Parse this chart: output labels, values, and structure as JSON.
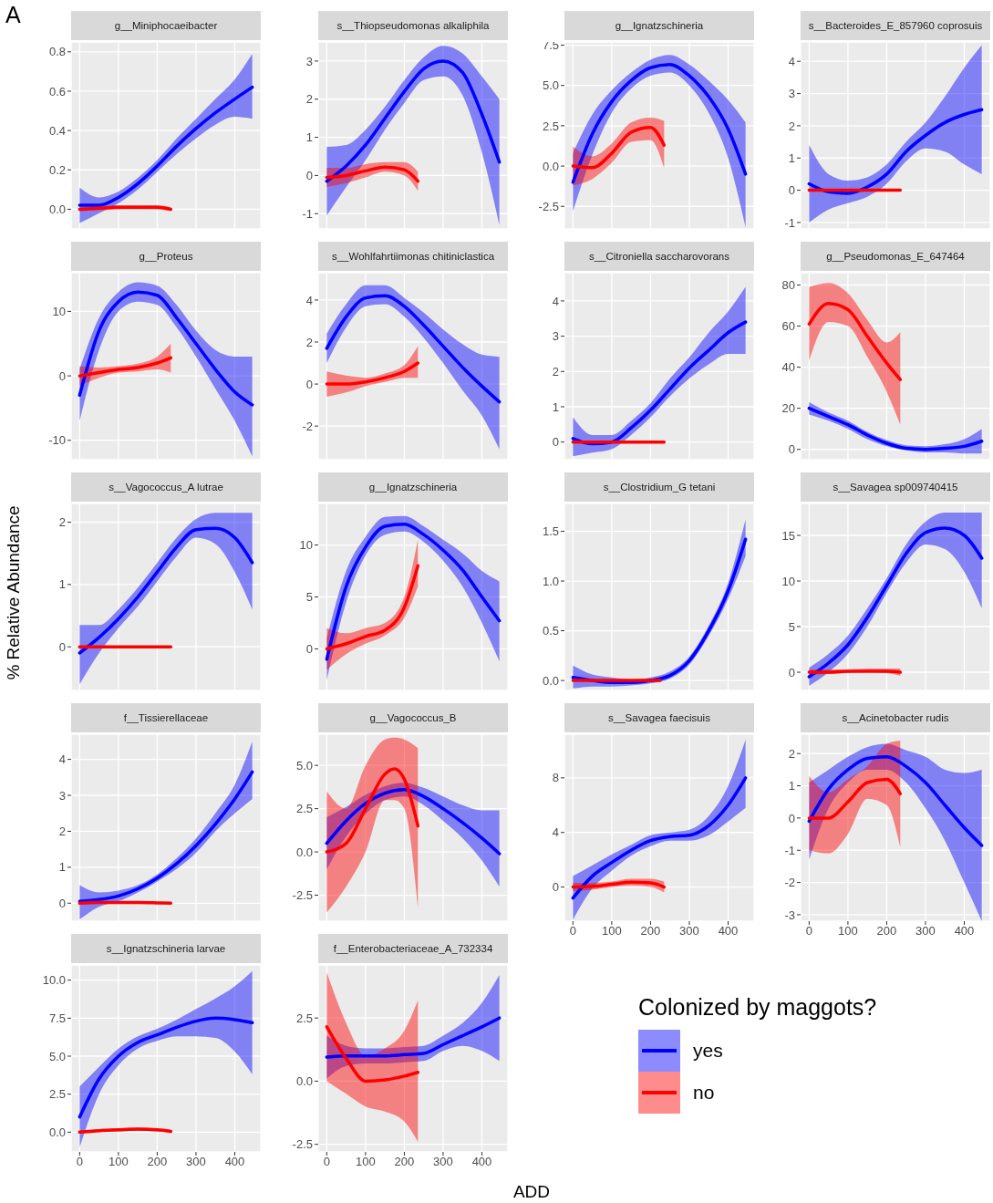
{
  "chart_data": [
    {
      "type": "line",
      "title": "g__Miniphocaeibacter",
      "annotations": [
        "A"
      ],
      "grid": true,
      "tick_labels": "y",
      "xlim": [
        -22,
        467
      ],
      "xticks": [
        0,
        100,
        200,
        300,
        400
      ],
      "ylim": [
        -0.1,
        0.85
      ],
      "yticks": [
        {
          "value": 0,
          "label": "0.0"
        },
        0.2,
        0.4,
        0.6,
        0.8
      ],
      "series": [
        {
          "color": "#0000ff",
          "x": [
            0,
            50,
            100,
            150,
            200,
            250,
            300,
            350,
            400,
            445
          ],
          "values": [
            0.02,
            0.02,
            0.06,
            0.13,
            0.22,
            0.32,
            0.41,
            0.49,
            0.56,
            0.62
          ],
          "lower": [
            -0.07,
            -0.02,
            0.03,
            0.1,
            0.19,
            0.28,
            0.36,
            0.43,
            0.47,
            0.46
          ],
          "upper": [
            0.11,
            0.06,
            0.09,
            0.16,
            0.25,
            0.36,
            0.46,
            0.56,
            0.66,
            0.79
          ]
        },
        {
          "color": "#ff0000",
          "x": [
            0,
            50,
            100,
            150,
            200,
            235
          ],
          "values": [
            0,
            0.005,
            0.01,
            0.01,
            0.01,
            0
          ],
          "lower": [
            -0.01,
            -0.005,
            0,
            0,
            0,
            -0.01
          ],
          "upper": [
            0.01,
            0.015,
            0.02,
            0.02,
            0.02,
            0.01
          ]
        }
      ]
    },
    {
      "type": "line",
      "title": "s__Thiopseudomonas alkaliphila",
      "grid": true,
      "tick_labels": "y",
      "xlim": [
        -22,
        467
      ],
      "xticks": [
        0,
        100,
        200,
        300,
        400
      ],
      "ylim": [
        -1.4,
        3.5
      ],
      "yticks": [
        -1,
        0,
        1,
        2,
        3
      ],
      "series": [
        {
          "color": "#0000ff",
          "x": [
            0,
            50,
            100,
            150,
            200,
            250,
            300,
            350,
            400,
            445
          ],
          "values": [
            -0.15,
            0.25,
            0.8,
            1.5,
            2.2,
            2.8,
            3,
            2.7,
            1.6,
            0.35
          ],
          "lower": [
            -1.05,
            -0.3,
            0.4,
            1.2,
            1.9,
            2.5,
            2.6,
            2.1,
            0.6,
            -1.3
          ],
          "upper": [
            0.75,
            0.8,
            1.2,
            1.8,
            2.5,
            3.1,
            3.4,
            3.2,
            2.6,
            2
          ]
        },
        {
          "color": "#ff0000",
          "x": [
            0,
            50,
            100,
            150,
            200,
            235
          ],
          "values": [
            -0.05,
            0,
            0.12,
            0.22,
            0.15,
            -0.15
          ],
          "lower": [
            -0.3,
            -0.2,
            -0.05,
            0.1,
            0,
            -0.4
          ],
          "upper": [
            0.2,
            0.2,
            0.3,
            0.35,
            0.35,
            0.1
          ]
        }
      ]
    },
    {
      "type": "line",
      "title": "g__Ignatzschineria",
      "grid": true,
      "tick_labels": "y",
      "xlim": [
        -22,
        467
      ],
      "xticks": [
        0,
        100,
        200,
        300,
        400
      ],
      "ylim": [
        -3.9,
        7.7
      ],
      "yticks": [
        -2.5,
        {
          "value": 0,
          "label": "0.0"
        },
        2.5,
        {
          "value": 5,
          "label": "5.0"
        },
        7.5
      ],
      "series": [
        {
          "color": "#0000ff",
          "x": [
            0,
            50,
            100,
            150,
            200,
            250,
            300,
            350,
            400,
            445
          ],
          "values": [
            -1,
            2,
            4,
            5.3,
            6.1,
            6.3,
            5.6,
            4.3,
            2.3,
            -0.5
          ],
          "lower": [
            -2.8,
            0.7,
            3.3,
            4.8,
            5.6,
            5.8,
            5,
            3.3,
            0.5,
            -3.8
          ],
          "upper": [
            0.8,
            3.2,
            4.7,
            5.8,
            6.6,
            6.9,
            6.3,
            5.3,
            4.1,
            2.7
          ]
        },
        {
          "color": "#ff0000",
          "x": [
            0,
            50,
            100,
            150,
            200,
            235
          ],
          "values": [
            0,
            -0.1,
            0.8,
            2.1,
            2.4,
            1.3
          ],
          "lower": [
            -1.2,
            -0.8,
            0.2,
            1.5,
            1.6,
            -0.1
          ],
          "upper": [
            1.2,
            0.6,
            1.4,
            2.7,
            3,
            2.8
          ]
        }
      ]
    },
    {
      "type": "line",
      "title": "s__Bacteroides_E_857960 coprosuis",
      "grid": true,
      "tick_labels": "y",
      "xlim": [
        -22,
        467
      ],
      "xticks": [
        0,
        100,
        200,
        300,
        400
      ],
      "ylim": [
        -1.2,
        4.6
      ],
      "yticks": [
        -1,
        0,
        1,
        2,
        3,
        4
      ],
      "series": [
        {
          "color": "#0000ff",
          "x": [
            0,
            50,
            100,
            150,
            200,
            250,
            300,
            350,
            400,
            445
          ],
          "values": [
            0.2,
            -0.05,
            -0.1,
            0.1,
            0.5,
            1.2,
            1.7,
            2.1,
            2.35,
            2.5
          ],
          "lower": [
            -1,
            -0.6,
            -0.4,
            -0.2,
            0.2,
            0.9,
            1.3,
            1.2,
            0.8,
            0.5
          ],
          "upper": [
            1.4,
            0.5,
            0.3,
            0.4,
            0.8,
            1.5,
            2.1,
            2.9,
            3.8,
            4.5
          ]
        },
        {
          "color": "#ff0000",
          "x": [
            0,
            50,
            100,
            150,
            200,
            235
          ],
          "values": [
            0,
            0,
            0,
            0,
            0,
            0
          ]
        }
      ]
    },
    {
      "type": "line",
      "title": "g__Proteus",
      "grid": true,
      "tick_labels": "y",
      "xlim": [
        -22,
        467
      ],
      "xticks": [
        0,
        100,
        200,
        300,
        400
      ],
      "ylim": [
        -13,
        16
      ],
      "yticks": [
        -10,
        0,
        10
      ],
      "series": [
        {
          "color": "#0000ff",
          "x": [
            0,
            50,
            100,
            150,
            200,
            250,
            300,
            350,
            400,
            445
          ],
          "values": [
            -3,
            7,
            11.5,
            13,
            12.5,
            9,
            5,
            1,
            -2.5,
            -4.5
          ],
          "lower": [
            -7,
            4,
            10,
            11.5,
            11,
            7.5,
            3,
            -2,
            -7,
            -12.5
          ],
          "upper": [
            1,
            9,
            13,
            14.5,
            14,
            11,
            7,
            4,
            3,
            3
          ]
        },
        {
          "color": "#ff0000",
          "x": [
            0,
            50,
            100,
            150,
            200,
            235
          ],
          "values": [
            0,
            0.5,
            1,
            1.3,
            2,
            2.8
          ],
          "lower": [
            -1.5,
            -0.3,
            0.5,
            0.7,
            1,
            0.5
          ],
          "upper": [
            1.5,
            1.3,
            1.5,
            1.9,
            3,
            5
          ]
        }
      ]
    },
    {
      "type": "line",
      "title": "s__Wohlfahrtiimonas chitiniclastica",
      "grid": true,
      "tick_labels": "y",
      "xlim": [
        -22,
        467
      ],
      "xticks": [
        0,
        100,
        200,
        300,
        400
      ],
      "ylim": [
        -3.6,
        5.3
      ],
      "yticks": [
        -2,
        0,
        2,
        4
      ],
      "series": [
        {
          "color": "#0000ff",
          "x": [
            0,
            50,
            100,
            150,
            200,
            250,
            300,
            350,
            400,
            445
          ],
          "values": [
            1.7,
            3.2,
            4.1,
            4.2,
            3.7,
            2.8,
            1.8,
            0.8,
            -0.1,
            -0.85
          ],
          "lower": [
            1,
            2.7,
            3.7,
            3.8,
            3.2,
            2.2,
            1,
            -0.3,
            -1.5,
            -3.1
          ],
          "upper": [
            2.4,
            3.8,
            4.7,
            4.7,
            4.1,
            3.4,
            2.6,
            1.9,
            1.4,
            1.3
          ]
        },
        {
          "color": "#ff0000",
          "x": [
            0,
            50,
            100,
            150,
            200,
            235
          ],
          "values": [
            0,
            0,
            0.1,
            0.3,
            0.6,
            1
          ],
          "lower": [
            -0.6,
            -0.4,
            -0.1,
            0.1,
            0.3,
            0.3
          ],
          "upper": [
            0.6,
            0.4,
            0.3,
            0.5,
            0.9,
            1.8
          ]
        }
      ]
    },
    {
      "type": "line",
      "title": "s__Citroniella saccharovorans",
      "grid": true,
      "tick_labels": "y",
      "xlim": [
        -22,
        467
      ],
      "xticks": [
        0,
        100,
        200,
        300,
        400
      ],
      "ylim": [
        -0.5,
        4.8
      ],
      "yticks": [
        0,
        1,
        2,
        3,
        4
      ],
      "series": [
        {
          "color": "#0000ff",
          "x": [
            0,
            50,
            100,
            150,
            200,
            250,
            300,
            350,
            400,
            445
          ],
          "values": [
            0.1,
            -0.05,
            0,
            0.4,
            0.9,
            1.5,
            2.1,
            2.6,
            3.1,
            3.4
          ],
          "lower": [
            -0.4,
            -0.3,
            -0.2,
            0.2,
            0.7,
            1.3,
            1.8,
            2.2,
            2.5,
            2.5
          ],
          "upper": [
            0.7,
            0.2,
            0.2,
            0.6,
            1.1,
            1.8,
            2.4,
            3.1,
            3.7,
            4.4
          ]
        },
        {
          "color": "#ff0000",
          "x": [
            0,
            50,
            100,
            150,
            200,
            235
          ],
          "values": [
            0,
            0,
            0,
            0,
            0,
            0
          ]
        }
      ]
    },
    {
      "type": "line",
      "title": "g__Pseudomonas_E_647464",
      "grid": true,
      "tick_labels": "y",
      "xlim": [
        -22,
        467
      ],
      "xticks": [
        0,
        100,
        200,
        300,
        400
      ],
      "ylim": [
        -5,
        86
      ],
      "yticks": [
        0,
        20,
        40,
        60,
        80
      ],
      "series": [
        {
          "color": "#0000ff",
          "x": [
            0,
            50,
            100,
            150,
            200,
            250,
            300,
            350,
            400,
            445
          ],
          "values": [
            20,
            16,
            12,
            7,
            3,
            0.5,
            0,
            0.5,
            1.5,
            4
          ],
          "lower": [
            17,
            14,
            10,
            5,
            1.5,
            -0.5,
            -1.5,
            -1.5,
            -2,
            -2
          ],
          "upper": [
            23,
            18,
            14,
            8.5,
            4.5,
            2,
            1.5,
            2.5,
            5,
            10
          ]
        },
        {
          "color": "#ff0000",
          "x": [
            0,
            50,
            100,
            150,
            200,
            235
          ],
          "values": [
            61,
            71,
            68,
            55,
            42,
            34
          ],
          "lower": [
            43,
            62,
            60,
            45,
            28,
            12
          ],
          "upper": [
            79,
            81,
            76,
            63,
            52,
            57
          ]
        }
      ]
    },
    {
      "type": "line",
      "title": "s__Vagococcus_A lutrae",
      "ylabel": "% Relative Abundance",
      "grid": true,
      "tick_labels": "y",
      "xlim": [
        -22,
        467
      ],
      "xticks": [
        0,
        100,
        200,
        300,
        400
      ],
      "ylim": [
        -0.7,
        2.3
      ],
      "yticks": [
        0,
        1,
        2
      ],
      "series": [
        {
          "color": "#0000ff",
          "x": [
            0,
            50,
            100,
            150,
            200,
            250,
            300,
            350,
            400,
            445
          ],
          "values": [
            -0.1,
            0.15,
            0.45,
            0.8,
            1.2,
            1.6,
            1.88,
            1.9,
            1.75,
            1.35
          ],
          "lower": [
            -0.6,
            -0.1,
            0.3,
            0.65,
            1.05,
            1.45,
            1.75,
            1.65,
            1.2,
            0.6
          ],
          "upper": [
            0.35,
            0.35,
            0.6,
            0.95,
            1.35,
            1.75,
            2.05,
            2.15,
            2.15,
            2.15
          ]
        },
        {
          "color": "#ff0000",
          "x": [
            0,
            50,
            100,
            150,
            200,
            235
          ],
          "values": [
            0,
            0,
            0,
            0,
            0,
            0
          ]
        }
      ]
    },
    {
      "type": "line",
      "title": "g__Ignatzschineria",
      "grid": true,
      "tick_labels": "y",
      "xlim": [
        -22,
        467
      ],
      "xticks": [
        0,
        100,
        200,
        300,
        400
      ],
      "ylim": [
        -4,
        14
      ],
      "yticks": [
        0,
        5,
        10
      ],
      "series": [
        {
          "color": "#0000ff",
          "x": [
            0,
            50,
            100,
            150,
            200,
            250,
            300,
            350,
            400,
            445
          ],
          "values": [
            -1,
            6,
            9.8,
            11.8,
            12,
            11,
            9.5,
            7.6,
            5,
            2.7
          ],
          "lower": [
            -3,
            4.5,
            9,
            11,
            11.3,
            10.3,
            8.5,
            6,
            2.5,
            -1.2
          ],
          "upper": [
            1,
            7.5,
            10.8,
            12.7,
            12.8,
            11.8,
            10.5,
            9.2,
            7.5,
            6.5
          ]
        },
        {
          "color": "#ff0000",
          "x": [
            0,
            50,
            100,
            150,
            200,
            235
          ],
          "values": [
            0,
            0.5,
            1.2,
            1.8,
            4,
            8
          ],
          "lower": [
            -2,
            -0.5,
            0.5,
            1.3,
            3,
            6
          ],
          "upper": [
            2,
            1.5,
            2,
            2.5,
            5,
            10.5
          ]
        }
      ]
    },
    {
      "type": "line",
      "title": "s__Clostridium_G tetani",
      "grid": true,
      "tick_labels": "y",
      "xlim": [
        -22,
        467
      ],
      "xticks": [
        0,
        100,
        200,
        300,
        400
      ],
      "ylim": [
        -0.1,
        1.78
      ],
      "yticks": [
        {
          "value": 0,
          "label": "0.0"
        },
        0.5,
        {
          "value": 1,
          "label": "1.0"
        },
        1.5
      ],
      "series": [
        {
          "color": "#0000ff",
          "x": [
            0,
            50,
            100,
            150,
            200,
            250,
            300,
            350,
            400,
            445
          ],
          "values": [
            0.03,
            0,
            -0.02,
            -0.02,
            0,
            0.05,
            0.2,
            0.5,
            0.9,
            1.42
          ],
          "lower": [
            -0.08,
            -0.06,
            -0.06,
            -0.05,
            -0.03,
            0.02,
            0.16,
            0.45,
            0.82,
            1.25
          ],
          "upper": [
            0.15,
            0.06,
            0.03,
            0.01,
            0.03,
            0.09,
            0.24,
            0.55,
            0.98,
            1.62
          ]
        },
        {
          "color": "#ff0000",
          "x": [
            0,
            50,
            100,
            150,
            200,
            225
          ],
          "values": [
            0,
            0,
            0,
            0,
            0,
            0
          ]
        }
      ]
    },
    {
      "type": "line",
      "title": "s__Savagea sp009740415",
      "grid": true,
      "tick_labels": "y",
      "xlim": [
        -22,
        467
      ],
      "xticks": [
        0,
        100,
        200,
        300,
        400
      ],
      "ylim": [
        -2,
        18.5
      ],
      "yticks": [
        0,
        5,
        10,
        15
      ],
      "series": [
        {
          "color": "#0000ff",
          "x": [
            0,
            50,
            100,
            150,
            200,
            250,
            300,
            350,
            400,
            445
          ],
          "values": [
            -0.5,
            1,
            3,
            6,
            9.5,
            13,
            15.3,
            15.8,
            15,
            12.5
          ],
          "lower": [
            -1.5,
            0,
            2,
            5,
            8.7,
            12,
            14,
            13.5,
            11,
            7
          ],
          "upper": [
            0.5,
            2,
            4,
            7,
            10.3,
            14,
            16.5,
            17.5,
            17.5,
            17.5
          ]
        },
        {
          "color": "#ff0000",
          "x": [
            0,
            50,
            100,
            150,
            200,
            235
          ],
          "values": [
            0,
            0,
            0.1,
            0.1,
            0.1,
            0
          ],
          "lower": [
            -0.3,
            -0.2,
            -0.1,
            0,
            -0.1,
            -0.4
          ],
          "upper": [
            0.3,
            0.3,
            0.3,
            0.4,
            0.4,
            0.4
          ]
        }
      ]
    },
    {
      "type": "line",
      "title": "f__Tissierellaceae",
      "grid": true,
      "tick_labels": "y",
      "xlim": [
        -22,
        467
      ],
      "xticks": [
        0,
        100,
        200,
        300,
        400
      ],
      "ylim": [
        -0.5,
        4.7
      ],
      "yticks": [
        0,
        1,
        2,
        3,
        4
      ],
      "series": [
        {
          "color": "#0000ff",
          "x": [
            0,
            50,
            100,
            150,
            200,
            250,
            300,
            350,
            400,
            445
          ],
          "values": [
            0.05,
            0.1,
            0.2,
            0.4,
            0.7,
            1.1,
            1.6,
            2.2,
            2.9,
            3.65
          ],
          "lower": [
            -0.45,
            -0.1,
            0.05,
            0.3,
            0.6,
            0.95,
            1.4,
            2,
            2.5,
            2.9
          ],
          "upper": [
            0.5,
            0.3,
            0.35,
            0.5,
            0.8,
            1.25,
            1.8,
            2.5,
            3.3,
            4.5
          ]
        },
        {
          "color": "#ff0000",
          "x": [
            0,
            50,
            100,
            150,
            200,
            235
          ],
          "values": [
            0,
            0.02,
            0.02,
            0.02,
            0.01,
            0
          ]
        }
      ]
    },
    {
      "type": "line",
      "title": "g__Vagococcus_B",
      "grid": true,
      "tick_labels": "y",
      "xlim": [
        -22,
        467
      ],
      "xticks": [
        0,
        100,
        200,
        300,
        400
      ],
      "ylim": [
        -4,
        6.8
      ],
      "yticks": [
        -2.5,
        {
          "value": 0,
          "label": "0.0"
        },
        2.5,
        {
          "value": 5,
          "label": "5.0"
        }
      ],
      "series": [
        {
          "color": "#0000ff",
          "x": [
            0,
            50,
            100,
            150,
            200,
            250,
            300,
            350,
            400,
            445
          ],
          "values": [
            0.5,
            1.8,
            2.8,
            3.4,
            3.6,
            3.2,
            2.5,
            1.7,
            0.8,
            -0.1
          ],
          "lower": [
            -1,
            0.9,
            2.2,
            3,
            3.2,
            2.7,
            1.8,
            0.8,
            -0.5,
            -2
          ],
          "upper": [
            2,
            2.6,
            3.3,
            3.8,
            4,
            3.7,
            3.2,
            2.7,
            2.4,
            2.4
          ]
        },
        {
          "color": "#ff0000",
          "x": [
            0,
            50,
            100,
            150,
            175,
            200,
            235
          ],
          "values": [
            0,
            0.5,
            2.5,
            4.5,
            4.8,
            4.2,
            1.5
          ],
          "lower": [
            -3.5,
            -2,
            0,
            3,
            3,
            2.5,
            -3.2
          ],
          "upper": [
            3.5,
            2.5,
            5,
            6.5,
            6.6,
            6.5,
            6
          ]
        }
      ]
    },
    {
      "type": "line",
      "title": "s__Savagea faecisuis",
      "grid": true,
      "xlim": [
        -22,
        467
      ],
      "xticks": [
        0,
        100,
        200,
        300,
        400
      ],
      "ylim": [
        -2.5,
        11.2
      ],
      "yticks": [
        0,
        4,
        8
      ],
      "series": [
        {
          "color": "#0000ff",
          "x": [
            0,
            50,
            100,
            150,
            200,
            250,
            300,
            350,
            400,
            445
          ],
          "values": [
            -0.8,
            0.8,
            1.8,
            2.7,
            3.4,
            3.7,
            3.8,
            4.5,
            6,
            8
          ],
          "lower": [
            -2.4,
            -0.1,
            1.2,
            2.3,
            3,
            3.4,
            3.4,
            3.8,
            4.8,
            5.8
          ],
          "upper": [
            0.8,
            1.6,
            2.4,
            3.1,
            3.8,
            4,
            4.2,
            5.2,
            7.4,
            10.8
          ]
        },
        {
          "color": "#ff0000",
          "x": [
            0,
            50,
            100,
            150,
            200,
            235
          ],
          "values": [
            0,
            0.05,
            0.2,
            0.35,
            0.3,
            0
          ],
          "lower": [
            -0.3,
            -0.2,
            0,
            0.1,
            0,
            -0.4
          ],
          "upper": [
            0.3,
            0.3,
            0.4,
            0.6,
            0.6,
            0.4
          ]
        }
      ]
    },
    {
      "type": "line",
      "title": "s__Acinetobacter rudis",
      "grid": true,
      "xlim": [
        -22,
        467
      ],
      "xticks": [
        0,
        100,
        200,
        300,
        400
      ],
      "ylim": [
        -3.2,
        2.6
      ],
      "yticks": [
        -3,
        -2,
        -1,
        0,
        1,
        2
      ],
      "series": [
        {
          "color": "#0000ff",
          "x": [
            0,
            50,
            100,
            150,
            200,
            250,
            300,
            350,
            400,
            445
          ],
          "values": [
            -0.1,
            0.9,
            1.5,
            1.85,
            1.9,
            1.6,
            1.1,
            0.4,
            -0.3,
            -0.85
          ],
          "lower": [
            -1.3,
            0.3,
            1.1,
            1.5,
            1.5,
            1.1,
            0.3,
            -0.7,
            -2,
            -3.2
          ],
          "upper": [
            1.1,
            1.5,
            1.9,
            2.2,
            2.3,
            2.1,
            1.9,
            1.5,
            1.4,
            1.5
          ]
        },
        {
          "color": "#ff0000",
          "x": [
            0,
            50,
            100,
            150,
            200,
            235
          ],
          "values": [
            0,
            0,
            0.5,
            1.1,
            1.2,
            0.75
          ],
          "lower": [
            -1,
            -1.1,
            -0.5,
            0.6,
            0.4,
            -0.9
          ],
          "upper": [
            1.3,
            0.8,
            1.2,
            1.6,
            2.3,
            2.4
          ]
        }
      ]
    },
    {
      "type": "line",
      "title": "s__Ignatzschineria larvae",
      "grid": true,
      "xlim": [
        -22,
        467
      ],
      "xticks": [
        0,
        100,
        200,
        300,
        400
      ],
      "ylim": [
        -1.3,
        11
      ],
      "yticks": [
        {
          "value": 0,
          "label": "0.0"
        },
        2.5,
        {
          "value": 5,
          "label": "5.0"
        },
        7.5,
        {
          "value": 10,
          "label": "10.0"
        }
      ],
      "series": [
        {
          "color": "#0000ff",
          "x": [
            0,
            50,
            100,
            150,
            200,
            250,
            300,
            350,
            400,
            445
          ],
          "values": [
            1,
            3.5,
            5,
            5.9,
            6.4,
            6.9,
            7.3,
            7.5,
            7.4,
            7.2
          ],
          "lower": [
            -1,
            2.5,
            4.4,
            5.5,
            6,
            6.3,
            6.3,
            6.2,
            5.3,
            3.8
          ],
          "upper": [
            3,
            4.3,
            5.5,
            6.3,
            6.8,
            7.4,
            8.1,
            8.8,
            9.6,
            10.6
          ]
        },
        {
          "color": "#ff0000",
          "x": [
            0,
            50,
            100,
            150,
            200,
            235
          ],
          "values": [
            0,
            0.1,
            0.15,
            0.2,
            0.15,
            0.05
          ],
          "lower": [
            -0.1,
            0,
            0.05,
            0.1,
            0.05,
            -0.05
          ],
          "upper": [
            0.1,
            0.2,
            0.25,
            0.3,
            0.25,
            0.15
          ]
        }
      ]
    },
    {
      "type": "line",
      "title": "f__Enterobacteriaceae_A_732334",
      "xlabel": "ADD",
      "legend_title": "Colonized by maggots?",
      "legend": "right",
      "grid": true,
      "xlim": [
        -22,
        467
      ],
      "xticks": [
        0,
        100,
        200,
        300,
        400
      ],
      "ylim": [
        -2.8,
        4.6
      ],
      "yticks": [
        -2.5,
        {
          "value": 0,
          "label": "0.0"
        },
        2.5
      ],
      "series": [
        {
          "name": "yes",
          "color": "#0000ff",
          "x": [
            0,
            50,
            100,
            150,
            200,
            250,
            300,
            350,
            400,
            445
          ],
          "values": [
            0.95,
            1,
            1,
            1,
            1.05,
            1.1,
            1.45,
            1.8,
            2.15,
            2.5
          ],
          "lower": [
            0.1,
            0.6,
            0.7,
            0.7,
            0.75,
            0.8,
            1.2,
            1.4,
            1.2,
            0.8
          ],
          "upper": [
            1.8,
            1.4,
            1.3,
            1.3,
            1.35,
            1.4,
            1.8,
            2.3,
            3.1,
            4.2
          ]
        },
        {
          "name": "no",
          "color": "#ff0000",
          "x": [
            0,
            50,
            100,
            150,
            200,
            235
          ],
          "values": [
            2.15,
            0.9,
            0,
            0.05,
            0.2,
            0.35
          ],
          "lower": [
            0,
            -0.5,
            -1,
            -1.2,
            -1.6,
            -2.4
          ],
          "upper": [
            4.3,
            2.3,
            1,
            1.3,
            2,
            3.2
          ]
        }
      ]
    }
  ]
}
